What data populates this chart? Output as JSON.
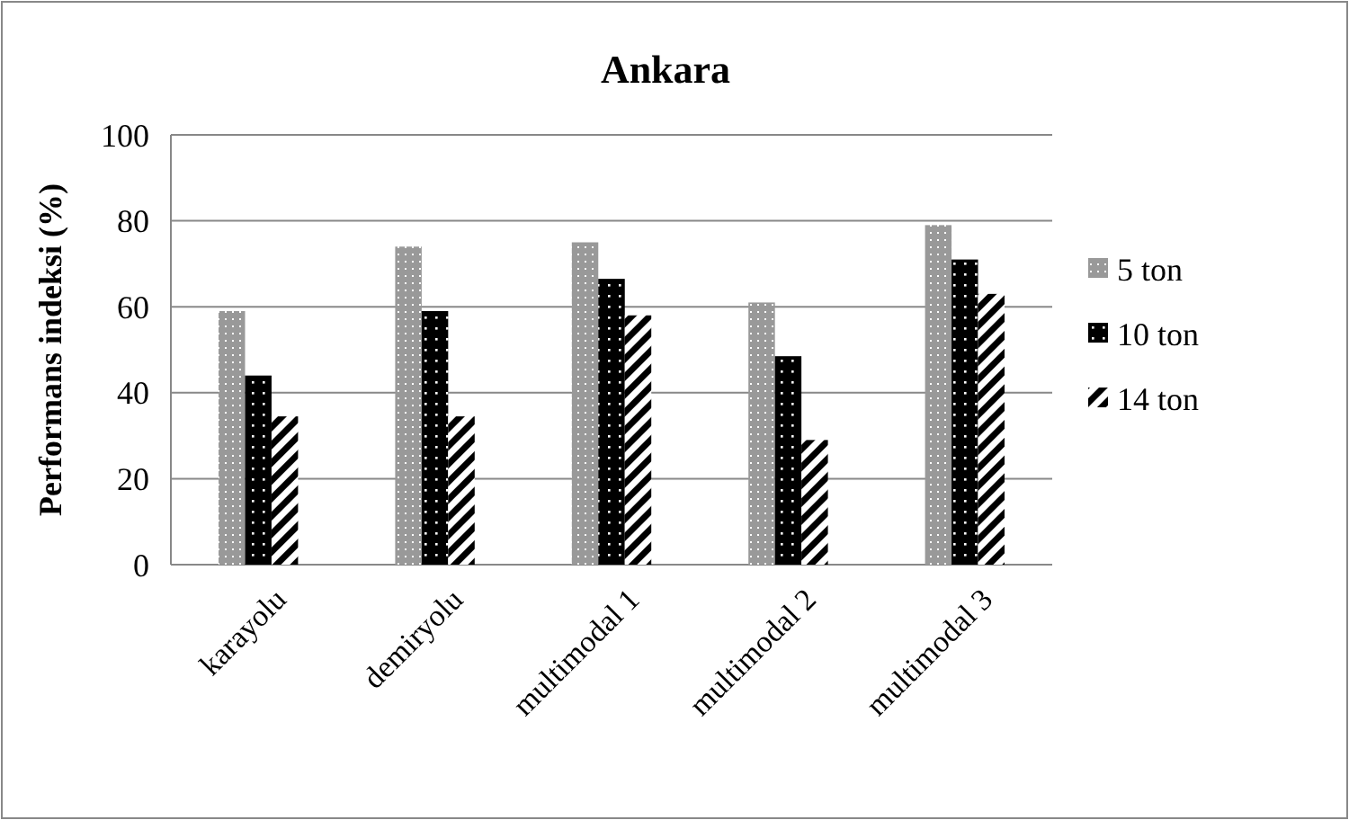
{
  "chart_data": {
    "type": "bar",
    "title": "Ankara",
    "ylabel": "Performans indeksi  (%)",
    "categories": [
      "karayolu",
      "demiryolu",
      "multimodal 1",
      "multimodal 2",
      "multimodal 3"
    ],
    "series": [
      {
        "name": "5 ton",
        "color": "#999999",
        "values": [
          59,
          74,
          75,
          61,
          79
        ]
      },
      {
        "name": "10 ton",
        "color": "#000000",
        "values": [
          44,
          59,
          66.5,
          48.5,
          71
        ]
      },
      {
        "name": "14 ton",
        "color": "#000000",
        "values": [
          34.5,
          34.5,
          58,
          29,
          63
        ]
      }
    ],
    "ylim": [
      0,
      100
    ],
    "yticks": [
      0,
      20,
      40,
      60,
      80,
      100
    ],
    "grid": "y",
    "legend": "right"
  }
}
